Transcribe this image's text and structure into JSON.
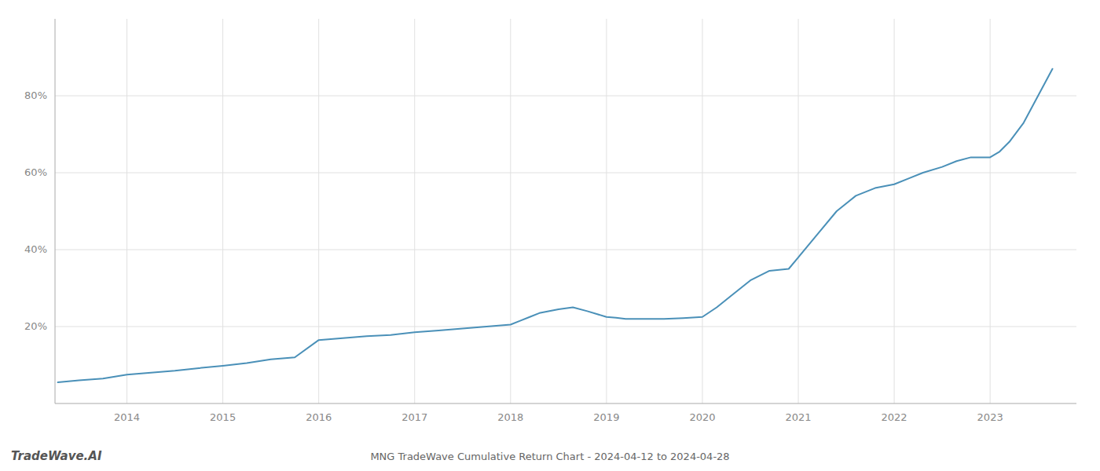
{
  "chart_data": {
    "type": "line",
    "title": "MNG TradeWave Cumulative Return Chart - 2024-04-12 to 2024-04-28",
    "annotations": [
      "TradeWave.AI"
    ],
    "color": "#4a90b8",
    "grid": true,
    "x": [
      2013.28,
      2013.5,
      2013.75,
      2014.0,
      2014.25,
      2014.5,
      2014.75,
      2015.0,
      2015.25,
      2015.5,
      2015.75,
      2016.0,
      2016.25,
      2016.5,
      2016.75,
      2017.0,
      2017.25,
      2017.5,
      2017.75,
      2018.0,
      2018.1,
      2018.2,
      2018.3,
      2018.5,
      2018.65,
      2018.8,
      2019.0,
      2019.1,
      2019.2,
      2019.4,
      2019.6,
      2019.8,
      2020.0,
      2020.15,
      2020.3,
      2020.5,
      2020.7,
      2020.9,
      2021.0,
      2021.2,
      2021.4,
      2021.6,
      2021.8,
      2022.0,
      2022.15,
      2022.3,
      2022.5,
      2022.65,
      2022.8,
      2023.0,
      2023.1,
      2023.2,
      2023.35,
      2023.5,
      2023.65
    ],
    "values": [
      5.5,
      6.0,
      6.5,
      7.5,
      8.0,
      8.5,
      9.2,
      9.8,
      10.5,
      11.5,
      12.0,
      16.5,
      17.0,
      17.5,
      17.8,
      18.5,
      19.0,
      19.5,
      20.0,
      20.5,
      21.5,
      22.5,
      23.5,
      24.5,
      25.0,
      24.0,
      22.5,
      22.3,
      22.0,
      22.0,
      22.0,
      22.2,
      22.5,
      25.0,
      28.0,
      32.0,
      34.5,
      35.0,
      38.0,
      44.0,
      50.0,
      54.0,
      56.0,
      57.0,
      58.5,
      60.0,
      61.5,
      63.0,
      64.0,
      64.0,
      65.5,
      68.0,
      73.0,
      80.0,
      87.0
    ],
    "xlim": [
      2013.25,
      2023.9
    ],
    "xticks": [
      2014,
      2015,
      2016,
      2017,
      2018,
      2019,
      2020,
      2021,
      2022,
      2023
    ],
    "ylim": [
      0,
      100
    ],
    "yticks": [
      {
        "value": 20,
        "label": "20%"
      },
      {
        "value": 40,
        "label": "40%"
      },
      {
        "value": 60,
        "label": "60%"
      },
      {
        "value": 80,
        "label": "80%"
      }
    ]
  }
}
